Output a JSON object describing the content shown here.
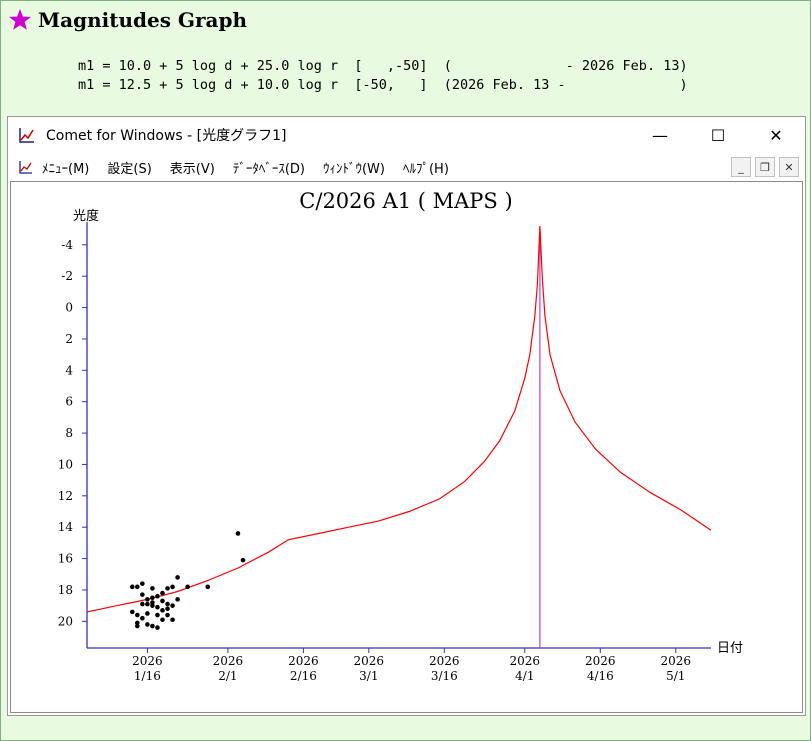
{
  "page": {
    "heading": "Magnitudes Graph",
    "formulas": [
      "m1 = 10.0 + 5 log d + 25.0 log r  [   ,-50]  (              - 2026 Feb. 13)",
      "m1 = 12.5 + 5 log d + 10.0 log r  [-50,   ]  (2026 Feb. 13 -              )"
    ]
  },
  "window": {
    "title": "Comet for Windows - [光度グラフ1]",
    "controls": {
      "minimize": "—",
      "maximize": "☐",
      "close": "✕"
    },
    "menu": [
      "ﾒﾆｭｰ(M)",
      "設定(S)",
      "表示(V)",
      "ﾃﾞｰﾀﾍﾞｰｽ(D)",
      "ｳｨﾝﾄﾞｳ(W)",
      "ﾍﾙﾌﾟ(H)"
    ],
    "mdi_controls": {
      "minimize": "_",
      "restore": "❐",
      "close": "✕"
    }
  },
  "chart_data": {
    "type": "line",
    "title": "C/2026 A1 ( MAPS )",
    "ylabel": "光度",
    "xlabel": "日付",
    "ylim": [
      21.7,
      -5.2
    ],
    "yticks": [
      -4,
      -2,
      0,
      2,
      4,
      6,
      8,
      10,
      12,
      14,
      16,
      18,
      20
    ],
    "xlim": [
      "2026-01-04",
      "2026-05-08"
    ],
    "xticks": [
      {
        "date": "2026-01-16",
        "label": [
          "2026",
          "1/16"
        ]
      },
      {
        "date": "2026-02-01",
        "label": [
          "2026",
          "2/1"
        ]
      },
      {
        "date": "2026-02-16",
        "label": [
          "2026",
          "2/16"
        ]
      },
      {
        "date": "2026-03-01",
        "label": [
          "2026",
          "3/1"
        ]
      },
      {
        "date": "2026-03-16",
        "label": [
          "2026",
          "3/16"
        ]
      },
      {
        "date": "2026-04-01",
        "label": [
          "2026",
          "4/1"
        ]
      },
      {
        "date": "2026-04-16",
        "label": [
          "2026",
          "4/16"
        ]
      },
      {
        "date": "2026-05-01",
        "label": [
          "2026",
          "5/1"
        ]
      }
    ],
    "perihelion_marker": {
      "date": "2026-04-04",
      "color": "#c040c0"
    },
    "series": [
      {
        "color": "#ff0000",
        "points": [
          [
            "2026-01-04",
            19.4
          ],
          [
            "2026-01-10",
            19.0
          ],
          [
            "2026-01-16",
            18.6
          ],
          [
            "2026-01-22",
            18.1
          ],
          [
            "2026-01-28",
            17.4
          ],
          [
            "2026-02-03",
            16.6
          ],
          [
            "2026-02-09",
            15.6
          ],
          [
            "2026-02-13",
            14.8
          ],
          [
            "2026-02-19",
            14.4
          ],
          [
            "2026-02-25",
            14.0
          ],
          [
            "2026-03-03",
            13.6
          ],
          [
            "2026-03-09",
            13.0
          ],
          [
            "2026-03-15",
            12.2
          ],
          [
            "2026-03-20",
            11.1
          ],
          [
            "2026-03-24",
            9.8
          ],
          [
            "2026-03-27",
            8.5
          ],
          [
            "2026-03-30",
            6.6
          ],
          [
            "2026-04-01",
            4.5
          ],
          [
            "2026-04-02",
            3.0
          ],
          [
            "2026-04-03",
            0.5
          ],
          [
            "2026-04-03.5",
            -1.5
          ],
          [
            "2026-04-04",
            -5.2
          ],
          [
            "2026-04-04.5",
            -1.8
          ],
          [
            "2026-04-05",
            0.5
          ],
          [
            "2026-04-06",
            3.0
          ],
          [
            "2026-04-08",
            5.3
          ],
          [
            "2026-04-11",
            7.3
          ],
          [
            "2026-04-15",
            9.0
          ],
          [
            "2026-04-20",
            10.5
          ],
          [
            "2026-04-26",
            11.8
          ],
          [
            "2026-05-02",
            12.9
          ],
          [
            "2026-05-08",
            14.2
          ]
        ]
      }
    ],
    "observations": [
      [
        "2026-01-13",
        17.8
      ],
      [
        "2026-01-14",
        17.8
      ],
      [
        "2026-01-15",
        17.6
      ],
      [
        "2026-01-17",
        17.9
      ],
      [
        "2026-01-15",
        18.3
      ],
      [
        "2026-01-16",
        18.6
      ],
      [
        "2026-01-17",
        18.5
      ],
      [
        "2026-01-18",
        18.4
      ],
      [
        "2026-01-19",
        18.2
      ],
      [
        "2026-01-20",
        17.9
      ],
      [
        "2026-01-21",
        17.8
      ],
      [
        "2026-01-22",
        17.2
      ],
      [
        "2026-01-16",
        18.9
      ],
      [
        "2026-01-17",
        19.0
      ],
      [
        "2026-01-18",
        19.1
      ],
      [
        "2026-01-19",
        19.3
      ],
      [
        "2026-01-20",
        18.9
      ],
      [
        "2026-01-21",
        19.0
      ],
      [
        "2026-01-22",
        18.6
      ],
      [
        "2026-01-13",
        19.4
      ],
      [
        "2026-01-14",
        19.6
      ],
      [
        "2026-01-15",
        19.8
      ],
      [
        "2026-01-16",
        19.5
      ],
      [
        "2026-01-18",
        19.6
      ],
      [
        "2026-01-19",
        19.9
      ],
      [
        "2026-01-20",
        19.6
      ],
      [
        "2026-01-21",
        19.9
      ],
      [
        "2026-01-14",
        20.1
      ],
      [
        "2026-01-14",
        20.3
      ],
      [
        "2026-01-16",
        20.2
      ],
      [
        "2026-01-17",
        20.3
      ],
      [
        "2026-01-18",
        20.4
      ],
      [
        "2026-01-17",
        18.8
      ],
      [
        "2026-01-19",
        18.7
      ],
      [
        "2026-01-20",
        19.2
      ],
      [
        "2026-01-24",
        17.8
      ],
      [
        "2026-01-28",
        17.8
      ],
      [
        "2026-02-03",
        14.4
      ],
      [
        "2026-02-04",
        16.1
      ],
      [
        "2026-01-15",
        18.9
      ]
    ]
  }
}
